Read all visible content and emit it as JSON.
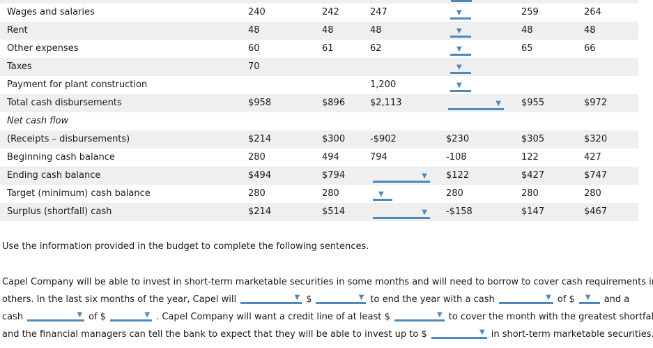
{
  "colors": {
    "accent_blue": "#4f88bb",
    "row_stripe": "#efefef",
    "text": "#1a1a1a"
  },
  "icons": {
    "dropdown_arrow": "▼"
  },
  "budget_table": {
    "rows": {
      "wages": {
        "label": "Wages and salaries",
        "m1": "240",
        "m2": "242",
        "m3": "247",
        "m5": "259",
        "m6": "264"
      },
      "rent": {
        "label": "Rent",
        "m1": "48",
        "m2": "48",
        "m3": "48",
        "m5": "48",
        "m6": "48"
      },
      "other": {
        "label": "Other expenses",
        "m1": "60",
        "m2": "61",
        "m3": "62",
        "m5": "65",
        "m6": "66"
      },
      "taxes": {
        "label": "Taxes",
        "m1": "70"
      },
      "payment": {
        "label": "Payment for plant construction",
        "m3": "1,200"
      },
      "total": {
        "label": "Total cash disbursements",
        "m1": "$958",
        "m2": "$896",
        "m3": "$2,113",
        "m5": "$955",
        "m6": "$972"
      },
      "net_cash_flow": {
        "label": "Net cash flow"
      },
      "receipts": {
        "label": "(Receipts – disbursements)",
        "m1": "$214",
        "m2": "$300",
        "m3": "-$902",
        "m4": "$230",
        "m5": "$305",
        "m6": "$320"
      },
      "beginning": {
        "label": "Beginning cash balance",
        "m1": "280",
        "m2": "494",
        "m3": "794",
        "m4": "-108",
        "m5": "122",
        "m6": "427"
      },
      "ending": {
        "label": "Ending cash balance",
        "m1": "$494",
        "m2": "$794",
        "m4": "$122",
        "m5": "$427",
        "m6": "$747"
      },
      "target": {
        "label": "Target (minimum) cash balance",
        "m1": "280",
        "m2": "280",
        "m4": "280",
        "m5": "280",
        "m6": "280"
      },
      "surplus": {
        "label": "Surplus (shortfall) cash",
        "m1": "$214",
        "m2": "$514",
        "m4": "-$158",
        "m5": "$147",
        "m6": "$467"
      }
    }
  },
  "instruction": "Use the information provided in the budget to complete the following sentences.",
  "sentences": {
    "line1": "Capel Company will be able to invest in short-term marketable securities in some months and will need to borrow to cover cash requirements in",
    "line2": {
      "t1": "others. In the last six months of the year, Capel will",
      "t2": "$",
      "t3": "to end the year with a cash",
      "t4": "of $",
      "t5": "and a"
    },
    "line3": {
      "t1": "cash",
      "t2": "of $",
      "t3": ". Capel Company will want a credit line of at least $",
      "t4": "to cover the month with the greatest shortfall,"
    },
    "line4": {
      "t1": "and the financial managers can tell the bank to expect that they will be able to invest up to $",
      "t2": "in short-term marketable securities."
    }
  }
}
